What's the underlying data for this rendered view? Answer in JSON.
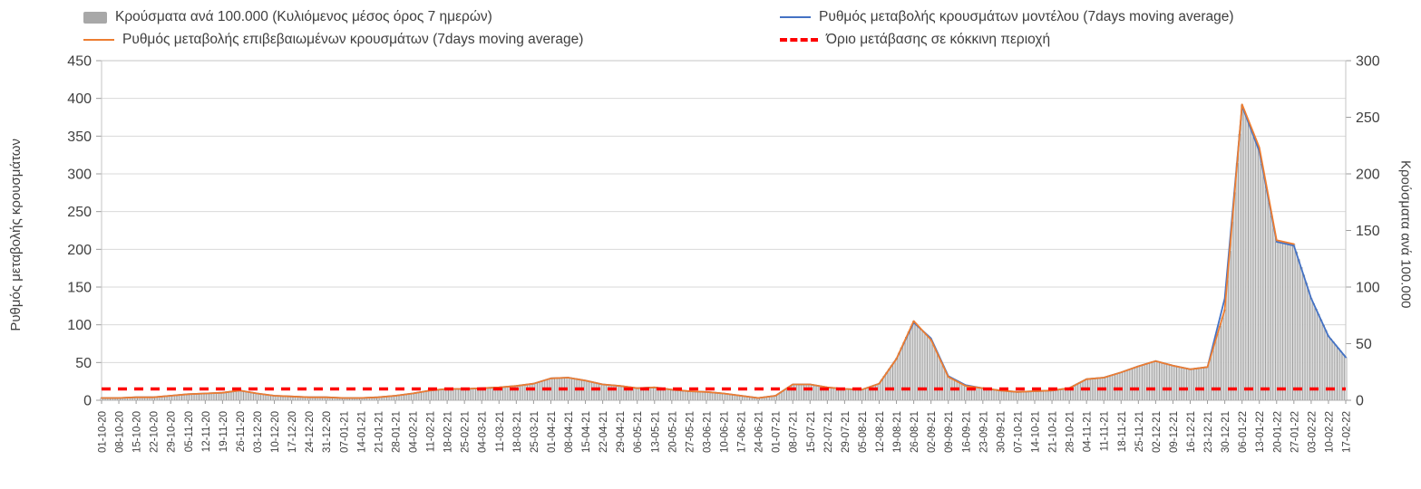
{
  "legend": {
    "bars": "Κρούσματα ανά 100.000 (Κυλιόμενος μέσος όρος 7 ημερών)",
    "model": "Ρυθμός μεταβολής κρουσμάτων μοντέλου (7days moving average)",
    "confirmed": "Ρυθμός μεταβολής επιβεβαιωμένων κρουσμάτων (7days moving average)",
    "threshold": "Όριο μετάβασης σε κόκκινη περιοχή"
  },
  "axes": {
    "left_title": "Ρυθμός μεταβολής κρουσμάτων",
    "right_title": "Κρούσματα ανά 100.000",
    "left_ticks": [
      0,
      50,
      100,
      150,
      200,
      250,
      300,
      350,
      400,
      450
    ],
    "right_ticks": [
      0,
      50,
      100,
      150,
      200,
      250,
      300
    ]
  },
  "chart_data": {
    "type": "combo",
    "left_ylim": [
      0,
      450
    ],
    "right_ylim": [
      0,
      300
    ],
    "categories": [
      "01-10-20",
      "08-10-20",
      "15-10-20",
      "22-10-20",
      "29-10-20",
      "05-11-20",
      "12-11-20",
      "19-11-20",
      "26-11-20",
      "03-12-20",
      "10-12-20",
      "17-12-20",
      "24-12-20",
      "31-12-20",
      "07-01-21",
      "14-01-21",
      "21-01-21",
      "28-01-21",
      "04-02-21",
      "11-02-21",
      "18-02-21",
      "25-02-21",
      "04-03-21",
      "11-03-21",
      "18-03-21",
      "25-03-21",
      "01-04-21",
      "08-04-21",
      "15-04-21",
      "22-04-21",
      "29-04-21",
      "06-05-21",
      "13-05-21",
      "20-05-21",
      "27-05-21",
      "03-06-21",
      "10-06-21",
      "17-06-21",
      "24-06-21",
      "01-07-21",
      "08-07-21",
      "15-07-21",
      "22-07-21",
      "29-07-21",
      "05-08-21",
      "12-08-21",
      "19-08-21",
      "26-08-21",
      "02-09-21",
      "09-09-21",
      "16-09-21",
      "23-09-21",
      "30-09-21",
      "07-10-21",
      "14-10-21",
      "21-10-21",
      "28-10-21",
      "04-11-21",
      "11-11-21",
      "18-11-21",
      "25-11-21",
      "02-12-21",
      "09-12-21",
      "16-12-21",
      "23-12-21",
      "30-12-21",
      "06-01-22",
      "13-01-22",
      "20-01-22",
      "27-01-22",
      "03-02-22",
      "10-02-22",
      "17-02-22"
    ],
    "series": [
      {
        "name": "Κρούσματα ανά 100.000 (Κυλιόμενος μέσος όρος 7 ημερών)",
        "type": "bar",
        "axis": "right",
        "color": "#DCDCDC",
        "values": [
          2,
          2,
          3,
          3,
          4,
          5,
          6,
          7,
          9,
          6,
          4,
          3,
          3,
          3,
          2,
          2,
          3,
          4,
          6,
          9,
          10,
          10,
          11,
          11,
          13,
          15,
          19,
          20,
          17,
          14,
          13,
          11,
          11,
          9,
          8,
          7,
          6,
          4,
          2,
          4,
          14,
          14,
          11,
          10,
          9,
          15,
          37,
          70,
          53,
          21,
          13,
          11,
          9,
          7,
          8,
          9,
          11,
          19,
          20,
          25,
          30,
          35,
          31,
          27,
          29,
          80,
          261,
          220,
          140,
          138,
          90,
          57,
          38
        ]
      },
      {
        "name": "Ρυθμός μεταβολής κρουσμάτων μοντέλου (7days moving average)",
        "type": "line",
        "axis": "left",
        "color": "#4472C4",
        "values": [
          3,
          3,
          4,
          4,
          6,
          8,
          9,
          10,
          13,
          9,
          6,
          5,
          4,
          4,
          3,
          3,
          4,
          6,
          9,
          13,
          15,
          15,
          16,
          17,
          19,
          22,
          29,
          30,
          26,
          21,
          19,
          16,
          17,
          14,
          12,
          11,
          9,
          6,
          3,
          6,
          21,
          21,
          17,
          15,
          14,
          22,
          55,
          103,
          82,
          32,
          20,
          16,
          13,
          11,
          12,
          13,
          16,
          28,
          30,
          37,
          45,
          52,
          46,
          41,
          44,
          135,
          390,
          330,
          210,
          205,
          135,
          85,
          57
        ]
      },
      {
        "name": "Ρυθμός μεταβολής επιβεβαιωμένων κρουσμάτων (7days moving average)",
        "type": "line",
        "axis": "left",
        "color": "#ED7D31",
        "values": [
          3,
          3,
          4,
          4,
          6,
          8,
          9,
          10,
          13,
          9,
          6,
          5,
          4,
          4,
          3,
          3,
          4,
          6,
          9,
          13,
          15,
          15,
          16,
          17,
          19,
          22,
          29,
          30,
          26,
          21,
          19,
          16,
          17,
          14,
          12,
          11,
          9,
          6,
          3,
          6,
          21,
          21,
          17,
          15,
          14,
          22,
          55,
          105,
          80,
          31,
          19,
          16,
          13,
          11,
          12,
          13,
          16,
          28,
          30,
          37,
          45,
          52,
          46,
          41,
          44,
          120,
          392,
          335,
          212,
          207,
          null,
          null,
          null
        ]
      }
    ],
    "threshold": {
      "label": "Όριο μετάβασης σε κόκκινη περιοχή",
      "axis": "left",
      "value": 15,
      "color": "#FE0000"
    }
  }
}
